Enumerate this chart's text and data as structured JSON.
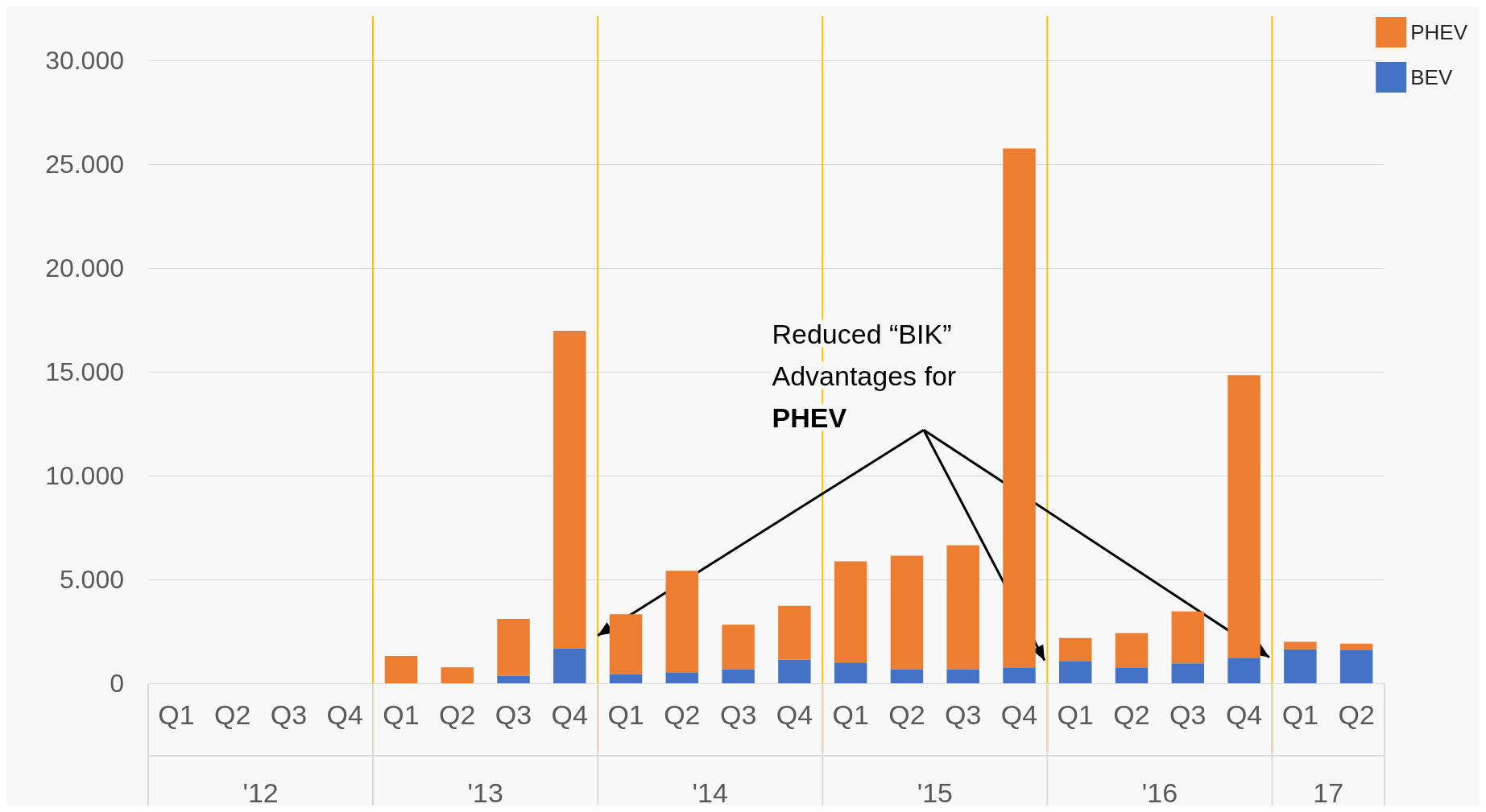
{
  "chart_data": {
    "type": "bar",
    "stacked": true,
    "categories": [
      "Q1",
      "Q2",
      "Q3",
      "Q4",
      "Q1",
      "Q2",
      "Q3",
      "Q4",
      "Q1",
      "Q2",
      "Q3",
      "Q4",
      "Q1",
      "Q2",
      "Q3",
      "Q4",
      "Q1",
      "Q2",
      "Q3",
      "Q4",
      "Q1",
      "Q2"
    ],
    "series": [
      {
        "name": "BEV",
        "color": "#4472c4",
        "values": [
          null,
          null,
          null,
          null,
          0,
          0,
          360,
          1680,
          450,
          500,
          680,
          1140,
          1000,
          680,
          680,
          770,
          1050,
          770,
          960,
          1230,
          1640,
          1590
        ]
      },
      {
        "name": "PHEV",
        "color": "#ed7d31",
        "values": [
          null,
          null,
          null,
          null,
          1320,
          770,
          2740,
          15300,
          2870,
          4920,
          2140,
          2590,
          4870,
          5460,
          5970,
          24990,
          1130,
          1640,
          2500,
          13610,
          360,
          320
        ]
      }
    ],
    "ylim": [
      0,
      30000
    ],
    "yticks": [
      0,
      {
        "value": 5000,
        "label": "5.000"
      },
      {
        "value": 10000,
        "label": "10.000"
      },
      {
        "value": 15000,
        "label": "15.000"
      },
      {
        "value": 20000,
        "label": "20.000"
      },
      {
        "value": 25000,
        "label": "25.000"
      },
      {
        "value": 30000,
        "label": "30.000"
      }
    ],
    "grid": "y",
    "legend": "top right",
    "annotations": [
      "'12",
      "'13",
      "'14",
      "'15",
      "'16",
      "17",
      "Reduced “BIK”\nAdvantages for\nPHEV"
    ]
  }
}
